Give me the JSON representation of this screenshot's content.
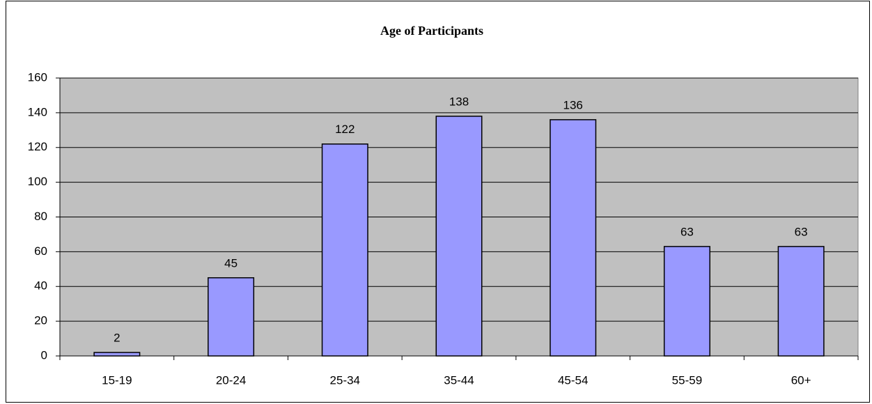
{
  "chart_data": {
    "type": "bar",
    "title": "Age of Participants",
    "categories": [
      "15-19",
      "20-24",
      "25-34",
      "35-44",
      "45-54",
      "55-59",
      "60+"
    ],
    "values": [
      2,
      45,
      122,
      138,
      136,
      63,
      63
    ],
    "color": "#9999ff",
    "ylim": [
      0,
      160
    ],
    "yticks": [
      0,
      20,
      40,
      60,
      80,
      100,
      120,
      140,
      160
    ],
    "grid": true
  }
}
